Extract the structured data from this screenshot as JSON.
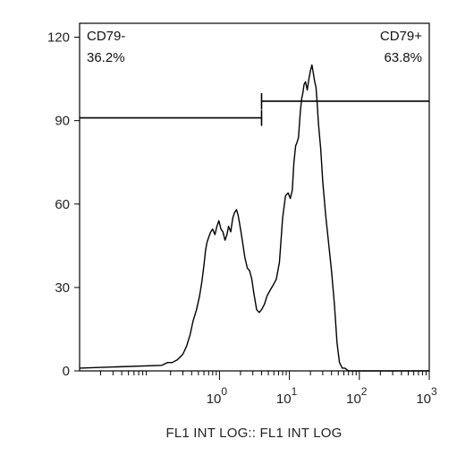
{
  "chart_data": {
    "type": "area",
    "title": "",
    "xlabel": "FL1 INT LOG:: FL1 INT LOG",
    "ylabel": "",
    "x_scale": "log",
    "xlim": [
      0.01,
      1000
    ],
    "ylim": [
      0,
      125
    ],
    "y_ticks": [
      0,
      30,
      60,
      90,
      120
    ],
    "x_ticks": [
      {
        "value": 1,
        "base": "10",
        "exp": "0"
      },
      {
        "value": 10,
        "base": "10",
        "exp": "1"
      },
      {
        "value": 100,
        "base": "10",
        "exp": "2"
      },
      {
        "value": 1000,
        "base": "10",
        "exp": "3"
      }
    ],
    "series": [
      {
        "x": [
          0.01,
          0.15,
          0.18,
          0.21,
          0.25,
          0.3,
          0.34,
          0.38,
          0.42,
          0.47,
          0.52,
          0.56,
          0.6,
          0.63,
          0.66,
          0.7,
          0.75,
          0.8,
          0.86,
          0.92,
          0.98,
          1.05,
          1.12,
          1.2,
          1.28,
          1.35,
          1.45,
          1.55,
          1.65,
          1.75,
          1.85,
          2.0,
          2.15,
          2.3,
          2.5,
          2.7,
          2.9,
          3.1,
          3.4,
          3.7,
          4.0,
          4.4,
          4.8,
          5.3,
          5.9,
          6.5,
          7.2,
          8.0,
          8.8,
          9.6,
          10.3,
          11.0,
          11.6,
          12.3,
          12.8,
          13.5,
          14.3,
          15.0,
          15.6,
          16.2,
          17.0,
          18.0,
          19.0,
          20.0,
          21.0,
          22.0,
          23.0,
          24.0,
          25.0,
          26.0,
          28.0,
          30.0,
          33.0,
          36.0,
          40.0,
          44.0,
          48.0,
          52.0,
          57.0,
          62.0,
          70.0,
          85.0,
          150.0,
          1000.0
        ],
        "y": [
          1,
          2,
          3,
          3,
          4,
          6,
          9,
          13,
          18,
          22,
          27,
          32,
          38,
          43,
          46,
          48,
          50,
          51,
          49,
          52,
          54,
          51,
          50,
          47,
          49,
          52,
          50,
          55,
          57,
          58,
          56,
          51,
          46,
          41,
          37,
          36,
          33,
          28,
          22,
          21,
          22,
          24,
          27,
          29,
          31,
          33,
          39,
          55,
          63,
          64,
          62,
          65,
          75,
          81,
          82,
          84,
          93,
          98,
          100,
          103,
          104,
          101,
          105,
          108,
          110,
          107,
          104,
          102,
          96,
          89,
          80,
          68,
          56,
          47,
          36,
          24,
          10,
          3,
          1,
          1,
          0,
          0,
          0,
          0
        ]
      }
    ],
    "gates": [
      {
        "name": "CD79-",
        "percent": "36.2%",
        "from": 0.01,
        "to": 4.0,
        "level": 91
      },
      {
        "name": "CD79+",
        "percent": "63.8%",
        "from": 4.0,
        "to": 1000,
        "level": 97
      }
    ],
    "grid": false,
    "legend": "none"
  }
}
